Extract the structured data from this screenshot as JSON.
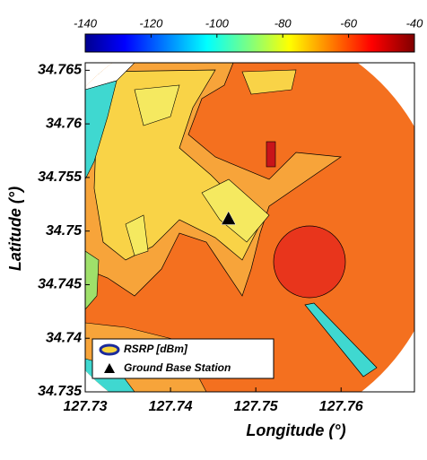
{
  "chart_data": {
    "type": "contour",
    "xlabel": "Longitude (°)",
    "ylabel": "Latitude (°)",
    "xlim": [
      127.73,
      127.7686
    ],
    "ylim": [
      34.735,
      34.7657
    ],
    "xticks": [
      127.73,
      127.74,
      127.75,
      127.76
    ],
    "yticks": [
      34.735,
      34.74,
      34.745,
      34.75,
      34.755,
      34.76,
      34.765
    ],
    "colorbar": {
      "lim": [
        -140,
        -40
      ],
      "ticks": [
        -140,
        -120,
        -100,
        -80,
        -60,
        -40
      ],
      "colormap": "jet"
    },
    "legend": {
      "position": "lower left"
    },
    "series": [
      {
        "name": "RSRP [dBm]",
        "type": "contour"
      },
      {
        "name": "Ground Base Station",
        "type": "marker",
        "x": [
          127.7468
        ],
        "y": [
          34.7511
        ],
        "color": "#000000"
      }
    ]
  }
}
